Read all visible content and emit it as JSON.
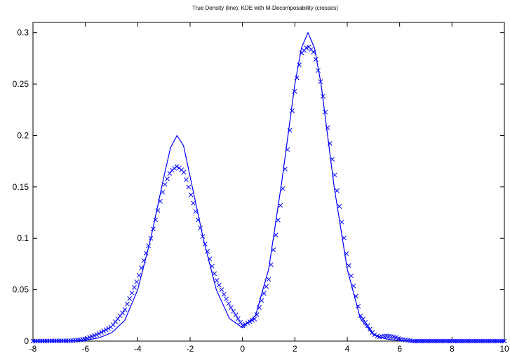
{
  "chart_data": {
    "type": "line",
    "title": "True Density (line); KDE with M-Decomposability (crosses)",
    "xlabel": "",
    "ylabel": "",
    "xlim": [
      -8,
      10
    ],
    "ylim": [
      0,
      0.31
    ],
    "xticks": [
      -8,
      -6,
      -4,
      -2,
      0,
      2,
      4,
      6,
      8,
      10
    ],
    "xtick_labels": [
      "-8",
      "-6",
      "-4",
      "-2",
      "0",
      "2",
      "4",
      "6",
      "8",
      "10"
    ],
    "yticks": [
      0,
      0.05,
      0.1,
      0.15,
      0.2,
      0.25,
      0.3
    ],
    "ytick_labels": [
      "0",
      "0.05",
      "0.1",
      "0.15",
      "0.2",
      "0.25",
      "0.3"
    ],
    "grid": false,
    "legend": "none",
    "color": "#0000ff",
    "series": [
      {
        "style": "line",
        "x": [
          -8,
          -6.5,
          -6,
          -5.5,
          -5,
          -4.5,
          -4,
          -3.5,
          -3,
          -2.75,
          -2.5,
          -2.25,
          -2,
          -1.5,
          -1,
          -0.5,
          0,
          0.5,
          1,
          1.5,
          2,
          2.25,
          2.5,
          2.75,
          3,
          3.5,
          4,
          4.5,
          5,
          5.5,
          6,
          6.5,
          10
        ],
        "y": [
          0,
          0.0002,
          0.0008,
          0.003,
          0.008,
          0.02,
          0.05,
          0.1,
          0.16,
          0.188,
          0.2,
          0.19,
          0.16,
          0.1,
          0.05,
          0.022,
          0.013,
          0.025,
          0.07,
          0.155,
          0.25,
          0.285,
          0.3,
          0.285,
          0.25,
          0.15,
          0.07,
          0.022,
          0.006,
          0.002,
          0.0005,
          0.0001,
          0
        ]
      },
      {
        "style": "crosses",
        "x": [
          -8,
          -6.5,
          -6,
          -5.5,
          -5,
          -4.5,
          -4,
          -3.5,
          -3,
          -2.75,
          -2.5,
          -2.25,
          -2,
          -1.5,
          -1,
          -0.5,
          0,
          0.5,
          1,
          1.5,
          2,
          2.25,
          2.5,
          2.75,
          3,
          3.5,
          4,
          4.5,
          5,
          5.2,
          5.5,
          5.8,
          6,
          6.5,
          10
        ],
        "y": [
          0,
          0.0003,
          0.002,
          0.007,
          0.014,
          0.03,
          0.06,
          0.1,
          0.15,
          0.165,
          0.17,
          0.165,
          0.145,
          0.1,
          0.06,
          0.035,
          0.015,
          0.022,
          0.06,
          0.14,
          0.245,
          0.28,
          0.287,
          0.28,
          0.25,
          0.165,
          0.08,
          0.025,
          0.007,
          0.004,
          0.005,
          0.004,
          0.002,
          0,
          0
        ]
      }
    ]
  }
}
